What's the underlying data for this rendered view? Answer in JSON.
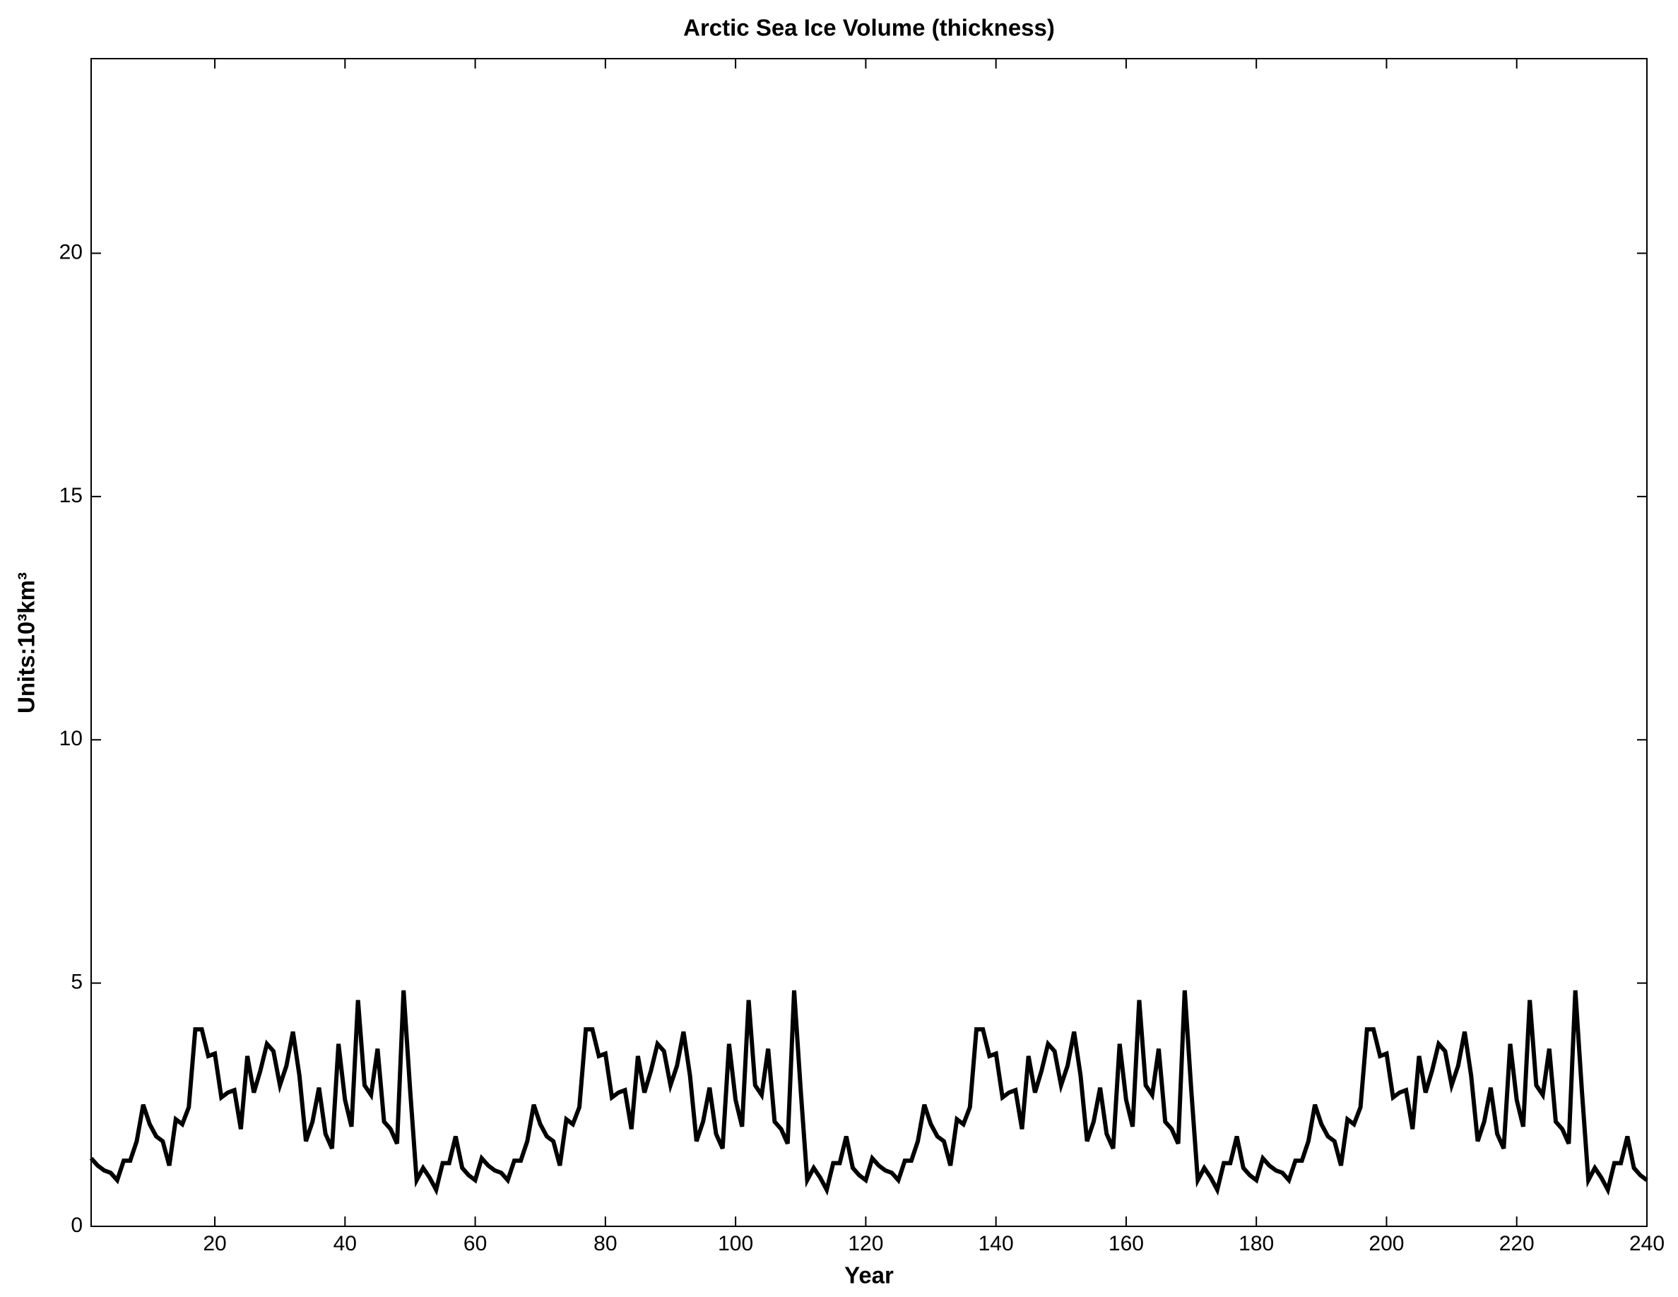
{
  "chart_data": {
    "type": "line",
    "title": "Arctic Sea Ice Volume (thickness)",
    "x_label": "Year",
    "y_label": "Units:10³km³",
    "color": "#000000",
    "x": [
      1,
      2,
      3,
      4,
      5,
      6,
      7,
      8,
      9,
      10,
      11,
      12,
      13,
      14,
      15,
      16,
      17,
      18,
      19,
      20,
      21,
      22,
      23,
      24,
      25,
      26,
      27,
      28,
      29,
      30,
      31,
      32,
      33,
      34,
      35,
      36,
      37,
      38,
      39,
      40,
      41,
      42,
      43,
      44,
      45,
      46,
      47,
      48,
      49,
      50,
      51,
      52,
      53,
      54,
      55,
      56,
      57,
      58,
      59,
      60,
      61,
      62,
      63,
      64,
      65,
      66,
      67,
      68,
      69,
      70,
      71,
      72,
      73,
      74,
      75,
      76,
      77,
      78,
      79,
      80,
      81,
      82,
      83,
      84,
      85,
      86,
      87,
      88,
      89,
      90,
      91,
      92,
      93,
      94,
      95,
      96,
      97,
      98,
      99,
      100,
      101,
      102,
      103,
      104,
      105,
      106,
      107,
      108,
      109,
      110,
      111,
      112,
      113,
      114,
      115,
      116,
      117,
      118,
      119,
      120,
      121,
      122,
      123,
      124,
      125,
      126,
      127,
      128,
      129,
      130,
      131,
      132,
      133,
      134,
      135,
      136,
      137,
      138,
      139,
      140,
      141,
      142,
      143,
      144,
      145,
      146,
      147,
      148,
      149,
      150,
      151,
      152,
      153,
      154,
      155,
      156,
      157,
      158,
      159,
      160,
      161,
      162,
      163,
      164,
      165,
      166,
      167,
      168,
      169,
      170,
      171,
      172,
      173,
      174,
      175,
      176,
      177,
      178,
      179,
      180,
      181,
      182,
      183,
      184,
      185,
      186,
      187,
      188,
      189,
      190,
      191,
      192,
      193,
      194,
      195,
      196,
      197,
      198,
      199,
      200,
      201,
      202,
      203,
      204,
      205,
      206,
      207,
      208,
      209,
      210,
      211,
      212,
      213,
      214,
      215,
      216,
      217,
      218,
      219,
      220,
      221,
      222,
      223,
      224,
      225,
      226,
      227,
      228,
      229,
      230,
      231,
      232,
      233,
      234,
      235,
      236,
      237,
      238,
      239,
      240
    ],
    "values": [
      1.4,
      1.25,
      1.15,
      1.1,
      0.95,
      1.35,
      1.35,
      1.75,
      2.5,
      2.1,
      1.85,
      1.75,
      1.25,
      2.2,
      2.1,
      2.45,
      4.05,
      4.05,
      3.5,
      3.55,
      2.65,
      2.75,
      2.8,
      2.0,
      3.5,
      2.75,
      3.2,
      3.75,
      3.6,
      2.9,
      3.3,
      4.0,
      3.1,
      1.75,
      2.15,
      2.85,
      1.9,
      1.6,
      3.75,
      2.6,
      2.05,
      4.65,
      2.9,
      2.7,
      3.65,
      2.15,
      2.0,
      1.7,
      4.85,
      2.8,
      0.95,
      1.2,
      1.0,
      0.75,
      1.3,
      1.3,
      1.85,
      1.2,
      1.05,
      0.95,
      1.4,
      1.25,
      1.15,
      1.1,
      0.95,
      1.35,
      1.35,
      1.75,
      2.5,
      2.1,
      1.85,
      1.75,
      1.25,
      2.2,
      2.1,
      2.45,
      4.05,
      4.05,
      3.5,
      3.55,
      2.65,
      2.75,
      2.8,
      2.0,
      3.5,
      2.75,
      3.2,
      3.75,
      3.6,
      2.9,
      3.3,
      4.0,
      3.1,
      1.75,
      2.15,
      2.85,
      1.9,
      1.6,
      3.75,
      2.6,
      2.05,
      4.65,
      2.9,
      2.7,
      3.65,
      2.15,
      2.0,
      1.7,
      4.85,
      2.8,
      0.95,
      1.2,
      1.0,
      0.75,
      1.3,
      1.3,
      1.85,
      1.2,
      1.05,
      0.95,
      1.4,
      1.25,
      1.15,
      1.1,
      0.95,
      1.35,
      1.35,
      1.75,
      2.5,
      2.1,
      1.85,
      1.75,
      1.25,
      2.2,
      2.1,
      2.45,
      4.05,
      4.05,
      3.5,
      3.55,
      2.65,
      2.75,
      2.8,
      2.0,
      3.5,
      2.75,
      3.2,
      3.75,
      3.6,
      2.9,
      3.3,
      4.0,
      3.1,
      1.75,
      2.15,
      2.85,
      1.9,
      1.6,
      3.75,
      2.6,
      2.05,
      4.65,
      2.9,
      2.7,
      3.65,
      2.15,
      2.0,
      1.7,
      4.85,
      2.8,
      0.95,
      1.2,
      1.0,
      0.75,
      1.3,
      1.3,
      1.85,
      1.2,
      1.05,
      0.95,
      1.4,
      1.25,
      1.15,
      1.1,
      0.95,
      1.35,
      1.35,
      1.75,
      2.5,
      2.1,
      1.85,
      1.75,
      1.25,
      2.2,
      2.1,
      2.45,
      4.05,
      4.05,
      3.5,
      3.55,
      2.65,
      2.75,
      2.8,
      2.0,
      3.5,
      2.75,
      3.2,
      3.75,
      3.6,
      2.9,
      3.3,
      4.0,
      3.1,
      1.75,
      2.15,
      2.85,
      1.9,
      1.6,
      3.75,
      2.6,
      2.05,
      4.65,
      2.9,
      2.7,
      3.65,
      2.15,
      2.0,
      1.7,
      4.85,
      2.8,
      0.95,
      1.2,
      1.0,
      0.75,
      1.3,
      1.3,
      1.85,
      1.2,
      1.05,
      0.95
    ],
    "xlim": [
      1,
      240
    ],
    "ylim": [
      0,
      24
    ],
    "xticks": [
      20,
      40,
      60,
      80,
      100,
      120,
      140,
      160,
      180,
      200,
      220,
      240
    ],
    "yticks": [
      0,
      5,
      10,
      15,
      20
    ]
  }
}
